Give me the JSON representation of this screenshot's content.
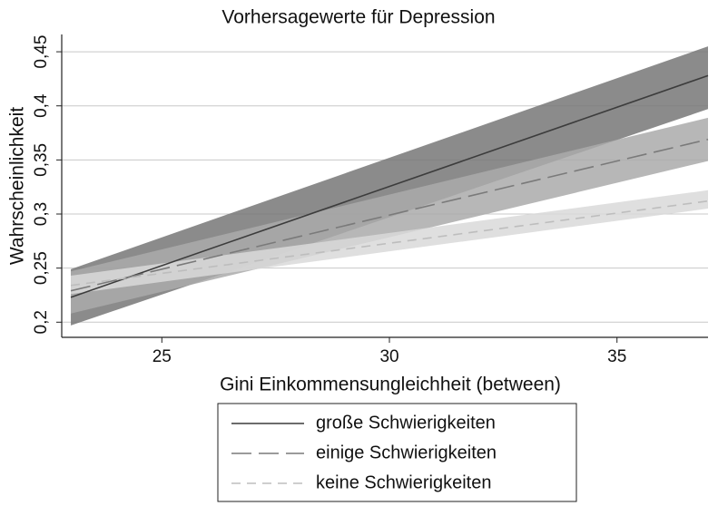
{
  "chart_data": {
    "type": "line",
    "title": "Vorhersagewerte für Depression",
    "xlabel": "Gini Einkommensungleichheit (between)",
    "ylabel": "Wahrscheinlichkeit",
    "x": [
      23,
      37
    ],
    "series": [
      {
        "name": "große Schwierigkeiten",
        "color": "#3c3c3c",
        "band_color": "#777777",
        "dash": "solid",
        "values": [
          0.223,
          0.428
        ],
        "lower": [
          0.197,
          0.397
        ],
        "upper": [
          0.249,
          0.455
        ]
      },
      {
        "name": "einige Schwierigkeiten",
        "color": "#7a7a7a",
        "band_color": "#aaaaaa",
        "dash": "long",
        "values": [
          0.229,
          0.369
        ],
        "lower": [
          0.208,
          0.349
        ],
        "upper": [
          0.247,
          0.389
        ]
      },
      {
        "name": "keine Schwierigkeiten",
        "color": "#bdbdbd",
        "band_color": "#d9d9d9",
        "dash": "short",
        "values": [
          0.234,
          0.312
        ],
        "lower": [
          0.226,
          0.305
        ],
        "upper": [
          0.243,
          0.322
        ]
      }
    ],
    "xlim": [
      22.8,
      37
    ],
    "xticks": [
      25,
      30,
      35
    ],
    "ylim": [
      0.186,
      0.466
    ],
    "yticks": [
      {
        "value": 0.2,
        "label": "0,2"
      },
      {
        "value": 0.25,
        "label": "0,25"
      },
      {
        "value": 0.3,
        "label": "0,3"
      },
      {
        "value": 0.35,
        "label": "0,35"
      },
      {
        "value": 0.4,
        "label": "0,4"
      },
      {
        "value": 0.45,
        "label": "0,45"
      }
    ],
    "grid": true,
    "legend": "bottom"
  }
}
